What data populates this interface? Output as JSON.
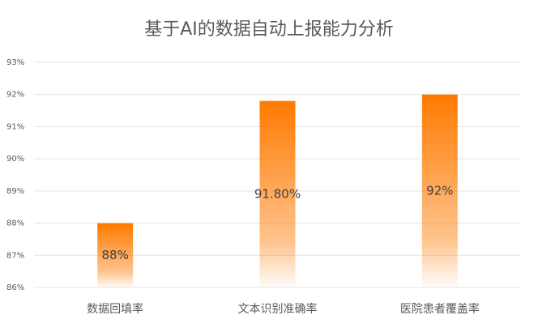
{
  "chart_data": {
    "type": "bar",
    "title": "基于AI的数据自动上报能力分析",
    "categories": [
      "数据回填率",
      "文本识别准确率",
      "医院患者覆盖率"
    ],
    "values": [
      88,
      91.8,
      92
    ],
    "value_labels": [
      "88%",
      "91.80%",
      "92%"
    ],
    "color": "#ff7a00",
    "ylim": [
      86,
      93
    ],
    "yticks": [
      {
        "value": 86,
        "label": "86%"
      },
      {
        "value": 87,
        "label": "87%"
      },
      {
        "value": 88,
        "label": "88%"
      },
      {
        "value": 89,
        "label": "89%"
      },
      {
        "value": 90,
        "label": "90%"
      },
      {
        "value": 91,
        "label": "91%"
      },
      {
        "value": 92,
        "label": "92%"
      },
      {
        "value": 93,
        "label": "93%"
      }
    ],
    "grid": true
  }
}
